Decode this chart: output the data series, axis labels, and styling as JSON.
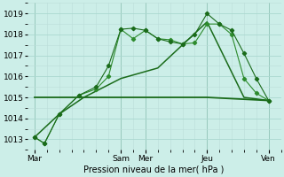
{
  "background_color": "#cceee8",
  "grid_major_color": "#aad8d0",
  "grid_minor_color": "#bbddd8",
  "line_color1": "#1a6b1a",
  "line_color2": "#2d8b2d",
  "xlabel": "Pression niveau de la mer( hPa )",
  "ylim": [
    1012.5,
    1019.5
  ],
  "yticks": [
    1013,
    1014,
    1015,
    1016,
    1017,
    1018,
    1019
  ],
  "x_day_positions": [
    0.0,
    3.5,
    4.5,
    7.0,
    9.5
  ],
  "x_day_labels": [
    "Mar",
    "Sam",
    "Mer",
    "Jeu",
    "Ven"
  ],
  "xlim": [
    -0.3,
    10.0
  ],
  "line1_x": [
    0.0,
    0.4,
    1.0,
    1.8,
    2.5,
    3.0,
    3.5,
    4.0,
    4.5,
    5.0,
    5.5,
    6.0,
    6.5,
    7.0,
    7.5,
    8.0,
    8.5,
    9.0,
    9.5
  ],
  "line1_y": [
    1013.1,
    1012.8,
    1014.2,
    1015.1,
    1015.5,
    1016.5,
    1018.25,
    1018.3,
    1018.2,
    1017.8,
    1017.65,
    1017.55,
    1018.0,
    1019.0,
    1018.5,
    1018.2,
    1017.1,
    1015.9,
    1014.85
  ],
  "line2_x": [
    0.0,
    0.4,
    1.0,
    1.8,
    2.5,
    3.0,
    3.5,
    4.0,
    4.5,
    5.0,
    5.5,
    6.0,
    6.5,
    7.0,
    7.5,
    8.0,
    8.5,
    9.0,
    9.5
  ],
  "line2_y": [
    1013.1,
    1012.8,
    1014.2,
    1015.1,
    1015.4,
    1016.0,
    1018.25,
    1017.8,
    1018.2,
    1017.8,
    1017.75,
    1017.55,
    1017.6,
    1018.5,
    1018.5,
    1018.0,
    1015.9,
    1015.2,
    1014.85
  ],
  "line3_x": [
    0.0,
    1.0,
    2.0,
    3.5,
    5.0,
    7.0,
    8.5,
    9.5
  ],
  "line3_y": [
    1013.1,
    1014.2,
    1015.0,
    1015.9,
    1016.4,
    1018.6,
    1015.0,
    1014.85
  ],
  "line4_x": [
    0.0,
    2.0,
    4.5,
    7.0,
    9.5
  ],
  "line4_y": [
    1015.0,
    1015.0,
    1015.0,
    1015.0,
    1014.85
  ]
}
